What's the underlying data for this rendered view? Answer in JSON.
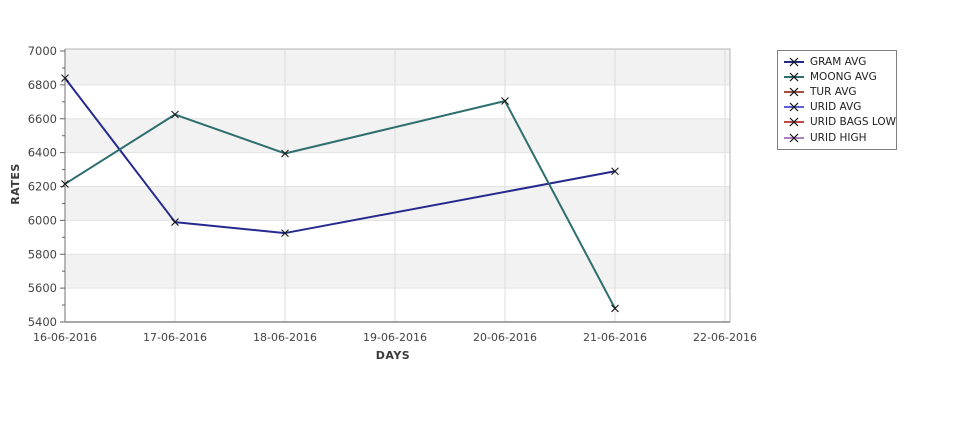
{
  "chart_data": {
    "type": "line",
    "title": "",
    "xlabel": "DAYS",
    "ylabel": "RATES",
    "ylim": [
      5400,
      7000
    ],
    "y_tick_step": 200,
    "y_minor_tick_step": 100,
    "grid": "on",
    "background_bands": "alternating gray/white per 200 units",
    "legend_position": "right",
    "marker": "x",
    "categories": [
      "16-06-2016",
      "17-06-2016",
      "18-06-2016",
      "19-06-2016",
      "20-06-2016",
      "21-06-2016",
      "22-06-2016"
    ],
    "series": [
      {
        "name": "GRAM AVG",
        "color": "#262a8e",
        "values": [
          6840,
          5990,
          5925,
          null,
          null,
          6290,
          null
        ]
      },
      {
        "name": "MOONG AVG",
        "color": "#2e6e6e",
        "values": [
          6215,
          6625,
          6395,
          null,
          6705,
          5480,
          null
        ]
      },
      {
        "name": "TUR AVG",
        "color": "#a44f3f",
        "values": [
          null,
          null,
          null,
          null,
          null,
          null,
          null
        ]
      },
      {
        "name": "URID AVG",
        "color": "#5f5fd7",
        "values": [
          null,
          null,
          null,
          null,
          null,
          null,
          null
        ]
      },
      {
        "name": "URID BAGS LOW",
        "color": "#c34747",
        "values": [
          null,
          null,
          null,
          null,
          null,
          null,
          null
        ]
      },
      {
        "name": "URID HIGH",
        "color": "#ad7fc6",
        "values": [
          null,
          null,
          null,
          null,
          null,
          null,
          null
        ]
      }
    ]
  },
  "colors": {
    "band_gray": "#f2f2f2",
    "band_white": "#ffffff",
    "grid_v": "#dcdcdc",
    "grid_h": "#e3e3e3",
    "frame": "#b5b5b5",
    "axis": "#8a8a8a",
    "tick": "#666666",
    "tick_label": "#444444",
    "marker": "#1a1a1a"
  }
}
